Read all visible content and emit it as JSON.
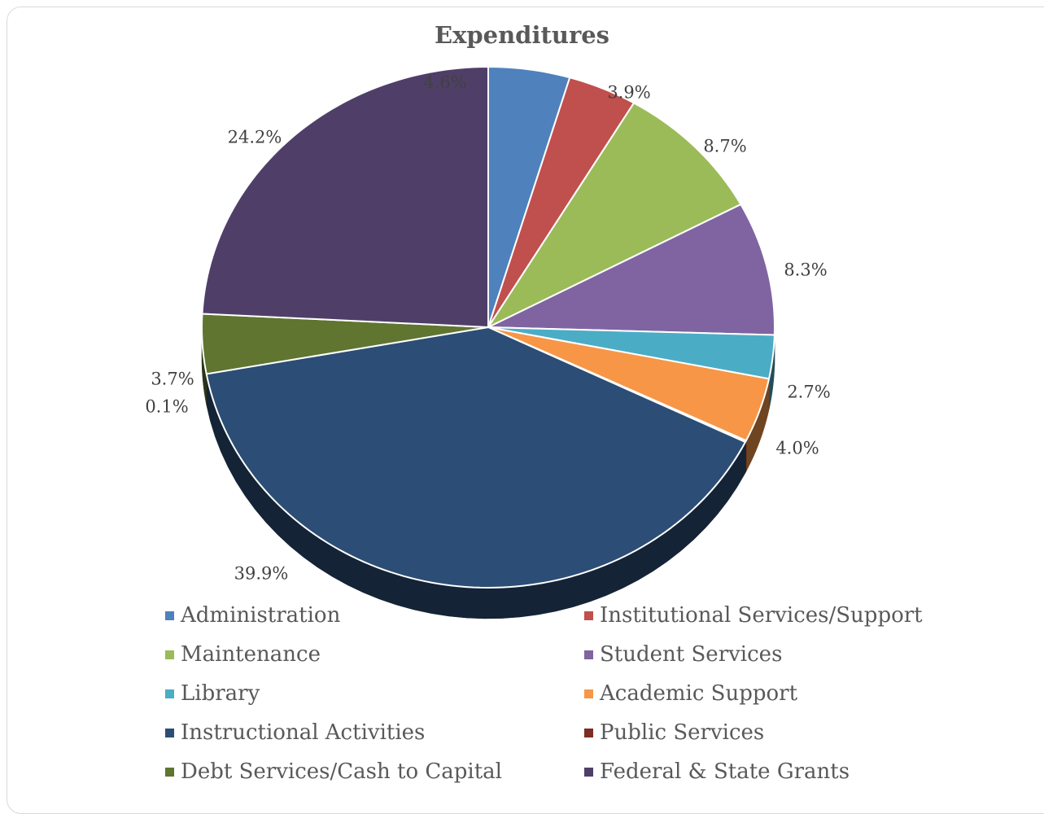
{
  "chart_data": {
    "type": "pie",
    "title": "Expenditures",
    "categories": [
      "Administration",
      "Institutional Services/Support",
      "Maintenance",
      "Student Services",
      "Library",
      "Academic Support",
      "Public Services",
      "Instructional Activities",
      "Debt Services/Cash to Capital",
      "Federal & State Grants"
    ],
    "values": [
      4.6,
      3.9,
      8.7,
      8.3,
      2.7,
      4.0,
      0.1,
      39.9,
      3.7,
      24.2
    ],
    "labels": [
      "4.6%",
      "3.9%",
      "8.7%",
      "8.3%",
      "2.7%",
      "4.0%",
      "0.1%",
      "39.9%",
      "3.7%",
      "24.2%"
    ],
    "colors": [
      "#4f81bd",
      "#c0504d",
      "#9bbb59",
      "#8064a2",
      "#4bacc6",
      "#f79646",
      "#7f2c22",
      "#2c4d75",
      "#5f7530",
      "#4f3f68"
    ],
    "legend_order": [
      "Administration",
      "Institutional Services/Support",
      "Maintenance",
      "Student Services",
      "Library",
      "Academic Support",
      "Instructional Activities",
      "Public Services",
      "Debt Services/Cash to Capital",
      "Federal & State Grants"
    ],
    "legend_placement": "bottom",
    "style": "3d-pie"
  }
}
